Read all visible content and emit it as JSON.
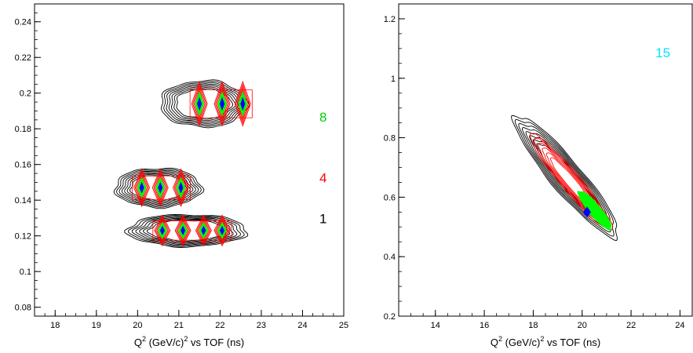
{
  "chart_data": [
    {
      "type": "contour",
      "xlabel_main": "Q",
      "xlabel_sup1": "2",
      "xlabel_mid": " (GeV/c)",
      "xlabel_sup2": "2",
      "xlabel_tail": " vs TOF (ns)",
      "xlim": [
        17.5,
        25
      ],
      "ylim": [
        0.075,
        0.25
      ],
      "xticks": [
        18,
        19,
        20,
        21,
        22,
        23,
        24,
        25
      ],
      "yticks": [
        0.08,
        0.1,
        0.12,
        0.14,
        0.16,
        0.18,
        0.2,
        0.22,
        0.24
      ],
      "yticks_labels": [
        "0.08",
        "0.1",
        "0.12",
        "0.14",
        "0.16",
        "0.18",
        "0.2",
        "0.22",
        "0.24"
      ],
      "level_colors": [
        "#000000",
        "#ff0000",
        "#00ff00",
        "#0000ff"
      ],
      "annotations": [
        {
          "text": "8",
          "x": 24.5,
          "y": 0.184,
          "color": "#00d000"
        },
        {
          "text": "4",
          "x": 24.5,
          "y": 0.15,
          "color": "#ff0000"
        },
        {
          "text": "1",
          "x": 24.5,
          "y": 0.127,
          "color": "#000000"
        }
      ],
      "clusters": [
        {
          "cx": 21.6,
          "cy": 0.194,
          "peaks": [
            21.5,
            22.05,
            22.55
          ],
          "halfw": 1.05,
          "halfh": 0.013
        },
        {
          "cx": 20.5,
          "cy": 0.147,
          "peaks": [
            20.1,
            20.55,
            21.05
          ],
          "halfw": 1.05,
          "halfh": 0.011
        },
        {
          "cx": 21.2,
          "cy": 0.123,
          "peaks": [
            20.6,
            21.1,
            21.6,
            22.05
          ],
          "halfw": 1.45,
          "halfh": 0.009
        }
      ]
    },
    {
      "type": "contour",
      "xlabel_main": "Q",
      "xlabel_sup1": "2",
      "xlabel_mid": " (GeV/c)",
      "xlabel_sup2": "2",
      "xlabel_tail": " vs TOF (ns)",
      "xlim": [
        12.5,
        24.5
      ],
      "ylim": [
        0.2,
        1.25
      ],
      "xticks": [
        14,
        16,
        18,
        20,
        22,
        24
      ],
      "yticks": [
        0.2,
        0.4,
        0.6,
        0.8,
        1.0,
        1.2
      ],
      "yticks_labels": [
        "0.2",
        "0.4",
        "0.6",
        "0.8",
        "1",
        "1.2"
      ],
      "level_colors": [
        "#000000",
        "#ff0000",
        "#00ff00",
        "#0000ff"
      ],
      "annotations": [
        {
          "text": "15",
          "x": 23.3,
          "y": 1.07,
          "color": "#00e5ff"
        }
      ],
      "band": {
        "x0": 17.4,
        "y0": 0.86,
        "x1": 21.3,
        "y1": 0.48,
        "peak_x": 20.2,
        "peak_y": 0.55
      }
    }
  ]
}
